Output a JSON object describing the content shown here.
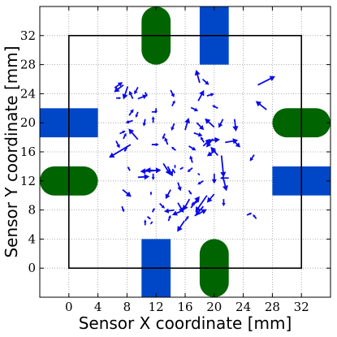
{
  "chart_data": {
    "type": "quiver",
    "xlabel": "Sensor X coordinate [mm]",
    "ylabel": "Sensor Y coordinate [mm]",
    "xlim": [
      -4,
      36
    ],
    "ylim": [
      -4,
      36
    ],
    "xticks": [
      0,
      4,
      8,
      12,
      16,
      20,
      24,
      28,
      32
    ],
    "yticks": [
      0,
      4,
      8,
      12,
      16,
      20,
      24,
      28,
      32
    ],
    "grid": true,
    "grid_style": "dotted",
    "sensor_outline": [
      0,
      0,
      32,
      32
    ],
    "colors": {
      "arrow": "#0a0ae6",
      "pad_green": "#006400",
      "pad_blue": "#0047c8",
      "grid": "#9a9a9a"
    },
    "pads": [
      {
        "shape": "round",
        "color": "green",
        "side": "top",
        "center": [
          12,
          32
        ]
      },
      {
        "shape": "square",
        "color": "blue",
        "side": "top",
        "center": [
          20,
          32
        ]
      },
      {
        "shape": "square",
        "color": "blue",
        "side": "bottom",
        "center": [
          12,
          0
        ]
      },
      {
        "shape": "round",
        "color": "green",
        "side": "bottom",
        "center": [
          20,
          0
        ]
      },
      {
        "shape": "square",
        "color": "blue",
        "side": "left",
        "center": [
          0,
          20
        ]
      },
      {
        "shape": "round",
        "color": "green",
        "side": "left",
        "center": [
          0,
          12
        ]
      },
      {
        "shape": "round",
        "color": "green",
        "side": "right",
        "center": [
          32,
          20
        ]
      },
      {
        "shape": "square",
        "color": "blue",
        "side": "right",
        "center": [
          32,
          12
        ]
      }
    ],
    "vectors": [
      {
        "x": 26.0,
        "y": 25.2,
        "u": 2.4,
        "v": 1.2
      },
      {
        "x": 27.2,
        "y": 21.8,
        "u": -1.5,
        "v": 1.2
      },
      {
        "x": 25.5,
        "y": 15.6,
        "u": -0.6,
        "v": -0.9
      },
      {
        "x": 25.8,
        "y": 6.8,
        "u": -0.5,
        "v": 0.6
      },
      {
        "x": 24.5,
        "y": 7.3,
        "u": 0.7,
        "v": 0.3
      },
      {
        "x": 22.8,
        "y": 20.5,
        "u": 0.2,
        "v": -1.7
      },
      {
        "x": 21.2,
        "y": 20.5,
        "u": -0.6,
        "v": -1.2
      },
      {
        "x": 20.5,
        "y": 22.0,
        "u": -0.8,
        "v": 0.4
      },
      {
        "x": 21.5,
        "y": 17.3,
        "u": 1.8,
        "v": 0.3
      },
      {
        "x": 22.6,
        "y": 17.6,
        "u": 1.0,
        "v": -1.0
      },
      {
        "x": 18.8,
        "y": 17.5,
        "u": 2.0,
        "v": 0.2
      },
      {
        "x": 20.5,
        "y": 15.5,
        "u": -1.0,
        "v": 1.2
      },
      {
        "x": 22.0,
        "y": 12.4,
        "u": -1.2,
        "v": 0.0
      },
      {
        "x": 21.0,
        "y": 15.5,
        "u": 0.3,
        "v": -3.0
      },
      {
        "x": 21.3,
        "y": 12.2,
        "u": 0.4,
        "v": -1.6
      },
      {
        "x": 20.0,
        "y": 13.0,
        "u": 0.0,
        "v": -1.4
      },
      {
        "x": 21.3,
        "y": 9.5,
        "u": 0.0,
        "v": -1.0
      },
      {
        "x": 20.0,
        "y": 10.2,
        "u": -1.0,
        "v": -1.2
      },
      {
        "x": 19.0,
        "y": 10.0,
        "u": -1.6,
        "v": -2.3
      },
      {
        "x": 18.5,
        "y": 8.5,
        "u": -1.1,
        "v": -1.3
      },
      {
        "x": 16.6,
        "y": 9.5,
        "u": -0.9,
        "v": -1.6
      },
      {
        "x": 15.6,
        "y": 7.9,
        "u": -1.4,
        "v": -0.6
      },
      {
        "x": 17.3,
        "y": 7.2,
        "u": 1.7,
        "v": 0.9
      },
      {
        "x": 15.9,
        "y": 6.5,
        "u": -1.0,
        "v": -1.5
      },
      {
        "x": 15.0,
        "y": 9.0,
        "u": 0.8,
        "v": -1.4
      },
      {
        "x": 14.5,
        "y": 8.0,
        "u": -1.4,
        "v": -0.2
      },
      {
        "x": 15.0,
        "y": 11.8,
        "u": 0.4,
        "v": -1.2
      },
      {
        "x": 14.0,
        "y": 10.8,
        "u": -0.7,
        "v": -1.3
      },
      {
        "x": 16.5,
        "y": 10.7,
        "u": 0.4,
        "v": -0.6
      },
      {
        "x": 11.3,
        "y": 10.5,
        "u": 0.0,
        "v": -0.5
      },
      {
        "x": 11.5,
        "y": 7.7,
        "u": 0.3,
        "v": 0.6
      },
      {
        "x": 11.5,
        "y": 6.4,
        "u": -0.3,
        "v": -0.4
      },
      {
        "x": 7.4,
        "y": 10.8,
        "u": 1.2,
        "v": -1.0
      },
      {
        "x": 7.3,
        "y": 8.5,
        "u": 0.3,
        "v": -0.8
      },
      {
        "x": 10.0,
        "y": 13.3,
        "u": 2.7,
        "v": 0.2
      },
      {
        "x": 12.5,
        "y": 13.4,
        "u": -2.0,
        "v": 0.1
      },
      {
        "x": 13.0,
        "y": 14.4,
        "u": 1.0,
        "v": -1.6
      },
      {
        "x": 11.6,
        "y": 13.0,
        "u": 0.0,
        "v": -0.9
      },
      {
        "x": 13.6,
        "y": 14.0,
        "u": 0.7,
        "v": -1.4
      },
      {
        "x": 14.6,
        "y": 14.2,
        "u": 0.0,
        "v": -0.5
      },
      {
        "x": 14.6,
        "y": 13.1,
        "u": -0.4,
        "v": 0.6
      },
      {
        "x": 15.3,
        "y": 13.6,
        "u": 0.5,
        "v": 0.3
      },
      {
        "x": 17.0,
        "y": 13.8,
        "u": -0.7,
        "v": -0.6
      },
      {
        "x": 18.0,
        "y": 12.8,
        "u": -0.3,
        "v": 0.3
      },
      {
        "x": 20.2,
        "y": 16.2,
        "u": -1.2,
        "v": -0.8
      },
      {
        "x": 16.5,
        "y": 16.8,
        "u": 1.0,
        "v": -0.6
      },
      {
        "x": 17.2,
        "y": 18.6,
        "u": 1.2,
        "v": -0.4
      },
      {
        "x": 19.8,
        "y": 17.8,
        "u": -0.9,
        "v": -1.2
      },
      {
        "x": 18.6,
        "y": 17.3,
        "u": -0.5,
        "v": 0.8
      },
      {
        "x": 16.0,
        "y": 19.0,
        "u": 0.5,
        "v": 1.7
      },
      {
        "x": 14.5,
        "y": 19.9,
        "u": -0.4,
        "v": -1.0
      },
      {
        "x": 13.2,
        "y": 18.5,
        "u": -0.3,
        "v": -0.8
      },
      {
        "x": 14.7,
        "y": 16.2,
        "u": -0.6,
        "v": 0.5
      },
      {
        "x": 12.0,
        "y": 22.0,
        "u": 0.0,
        "v": -0.7
      },
      {
        "x": 11.6,
        "y": 20.0,
        "u": 0.0,
        "v": 0.9
      },
      {
        "x": 11.4,
        "y": 21.5,
        "u": 0.8,
        "v": 0.0
      },
      {
        "x": 10.5,
        "y": 20.5,
        "u": -0.2,
        "v": -1.0
      },
      {
        "x": 11.4,
        "y": 17.0,
        "u": 1.0,
        "v": 0.0
      },
      {
        "x": 9.5,
        "y": 21.5,
        "u": -0.3,
        "v": -0.8
      },
      {
        "x": 8.3,
        "y": 21.0,
        "u": 0.6,
        "v": 0.9
      },
      {
        "x": 8.8,
        "y": 23.3,
        "u": -0.5,
        "v": 1.1
      },
      {
        "x": 8.1,
        "y": 25.0,
        "u": -0.6,
        "v": -1.8
      },
      {
        "x": 7.5,
        "y": 25.2,
        "u": -1.3,
        "v": -1.0
      },
      {
        "x": 6.3,
        "y": 24.8,
        "u": 1.1,
        "v": 0.8
      },
      {
        "x": 6.5,
        "y": 23.4,
        "u": 0.7,
        "v": 0.0
      },
      {
        "x": 9.5,
        "y": 23.3,
        "u": 1.3,
        "v": 0.5
      },
      {
        "x": 9.5,
        "y": 24.9,
        "u": -0.5,
        "v": -1.0
      },
      {
        "x": 10.5,
        "y": 24.2,
        "u": 0.3,
        "v": -0.6
      },
      {
        "x": 9.5,
        "y": 17.7,
        "u": -1.3,
        "v": 1.5
      },
      {
        "x": 8.8,
        "y": 20.3,
        "u": -1.0,
        "v": -0.3
      },
      {
        "x": 7.0,
        "y": 18.5,
        "u": 0.8,
        "v": 0.4
      },
      {
        "x": 6.5,
        "y": 17.5,
        "u": 0.5,
        "v": -1.0
      },
      {
        "x": 8.0,
        "y": 16.6,
        "u": -0.4,
        "v": -0.6
      },
      {
        "x": 8.5,
        "y": 17.0,
        "u": -3.0,
        "v": -1.8
      },
      {
        "x": 7.5,
        "y": 17.8,
        "u": 0.4,
        "v": 0.8
      },
      {
        "x": 9.5,
        "y": 12.5,
        "u": 1.6,
        "v": 0.1
      },
      {
        "x": 11.6,
        "y": 13.4,
        "u": -1.8,
        "v": -0.1
      },
      {
        "x": 8.4,
        "y": 13.4,
        "u": -0.3,
        "v": 0.6
      },
      {
        "x": 13.6,
        "y": 17.0,
        "u": -0.4,
        "v": 1.0
      },
      {
        "x": 17.0,
        "y": 14.5,
        "u": -0.3,
        "v": 1.0
      },
      {
        "x": 13.7,
        "y": 6.5,
        "u": 0.3,
        "v": 0.8
      },
      {
        "x": 12.5,
        "y": 8.9,
        "u": 0.7,
        "v": -0.7
      },
      {
        "x": 18.0,
        "y": 25.5,
        "u": -0.5,
        "v": 1.8
      },
      {
        "x": 18.4,
        "y": 26.0,
        "u": 0.9,
        "v": -0.8
      },
      {
        "x": 19.0,
        "y": 23.7,
        "u": 1.0,
        "v": 0.3
      },
      {
        "x": 17.8,
        "y": 23.0,
        "u": 0.8,
        "v": 1.5
      },
      {
        "x": 14.0,
        "y": 24.5,
        "u": 0.5,
        "v": -1.0
      },
      {
        "x": 14.2,
        "y": 22.3,
        "u": 0.4,
        "v": 0.8
      },
      {
        "x": 16.8,
        "y": 22.1,
        "u": 1.0,
        "v": -0.5
      },
      {
        "x": 18.5,
        "y": 16.8,
        "u": 1.0,
        "v": 1.0
      },
      {
        "x": 17.6,
        "y": 20.0,
        "u": 1.0,
        "v": -1.0
      },
      {
        "x": 20.0,
        "y": 19.4,
        "u": -1.3,
        "v": 1.2
      },
      {
        "x": 18.5,
        "y": 12.0,
        "u": -0.8,
        "v": -0.5
      },
      {
        "x": 16.8,
        "y": 8.3,
        "u": 1.2,
        "v": 1.6
      },
      {
        "x": 17.8,
        "y": 9.2,
        "u": -1.0,
        "v": -0.5
      },
      {
        "x": 10.5,
        "y": 5.9,
        "u": 0.0,
        "v": 0.8
      },
      {
        "x": 10.8,
        "y": 7.1,
        "u": 0.5,
        "v": -0.4
      },
      {
        "x": 16.0,
        "y": 6.5,
        "u": 0.5,
        "v": 0.7
      }
    ]
  }
}
